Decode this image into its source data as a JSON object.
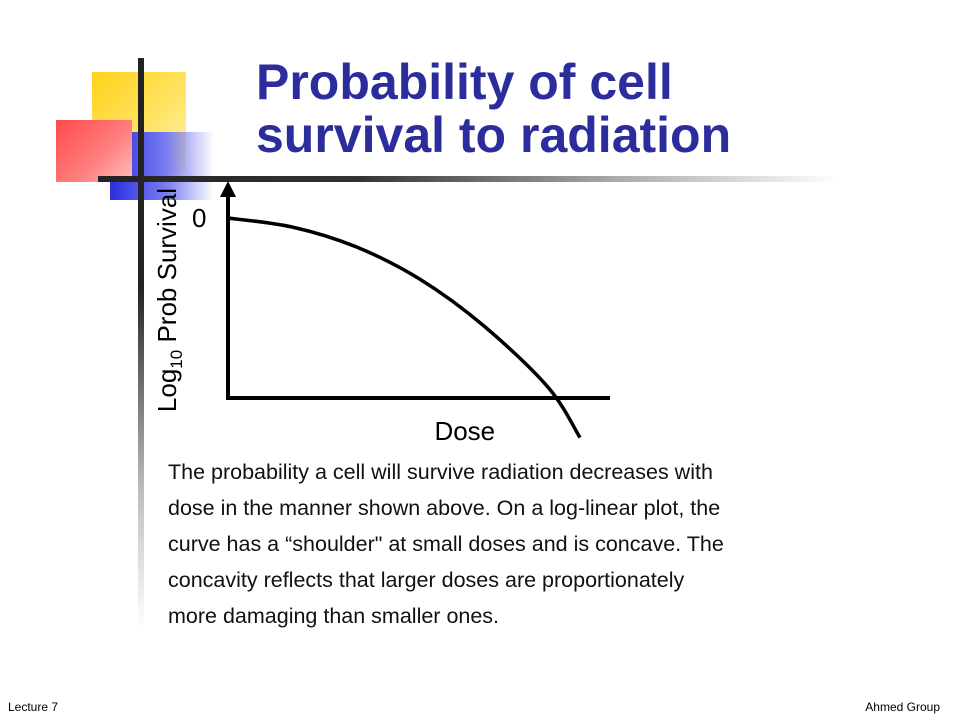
{
  "slide": {
    "title_lines": [
      "Probability of cell",
      "survival to radiation"
    ],
    "body_lines": [
      "The probability a cell will survive radiation decreases with",
      "dose in the manner shown above. On a log-linear plot, the",
      "curve has a “shoulder\" at small doses and is concave. The",
      "concavity reflects that larger doses are proportionately",
      "more damaging than smaller ones."
    ],
    "colors": {
      "title": "#2b2d9c",
      "deco_yellow": "#ffd21a",
      "deco_blue": "#2a2ee0",
      "deco_red": "#ff4a4a"
    }
  },
  "chart_data": {
    "type": "line",
    "xlabel": "Dose",
    "ylabel_prefix": "Log",
    "ylabel_subscript": "10",
    "ylabel_suffix": " Prob Survival",
    "y_tick_label": "0",
    "x_axis_arrow": true,
    "y_axis_arrow": true,
    "grid": false,
    "series": [
      {
        "x": [
          0,
          0.2,
          0.4,
          0.6,
          0.8,
          1.0,
          1.1
        ],
        "y": [
          0,
          -0.05,
          -0.16,
          -0.34,
          -0.6,
          -0.94,
          -1.22
        ]
      }
    ],
    "x_axis_at_y": -1.0,
    "xlim": [
      0,
      1.3
    ],
    "ylim": [
      -1.3,
      0.25
    ]
  },
  "footer": {
    "left": "Lecture 7",
    "right": "Ahmed Group"
  }
}
